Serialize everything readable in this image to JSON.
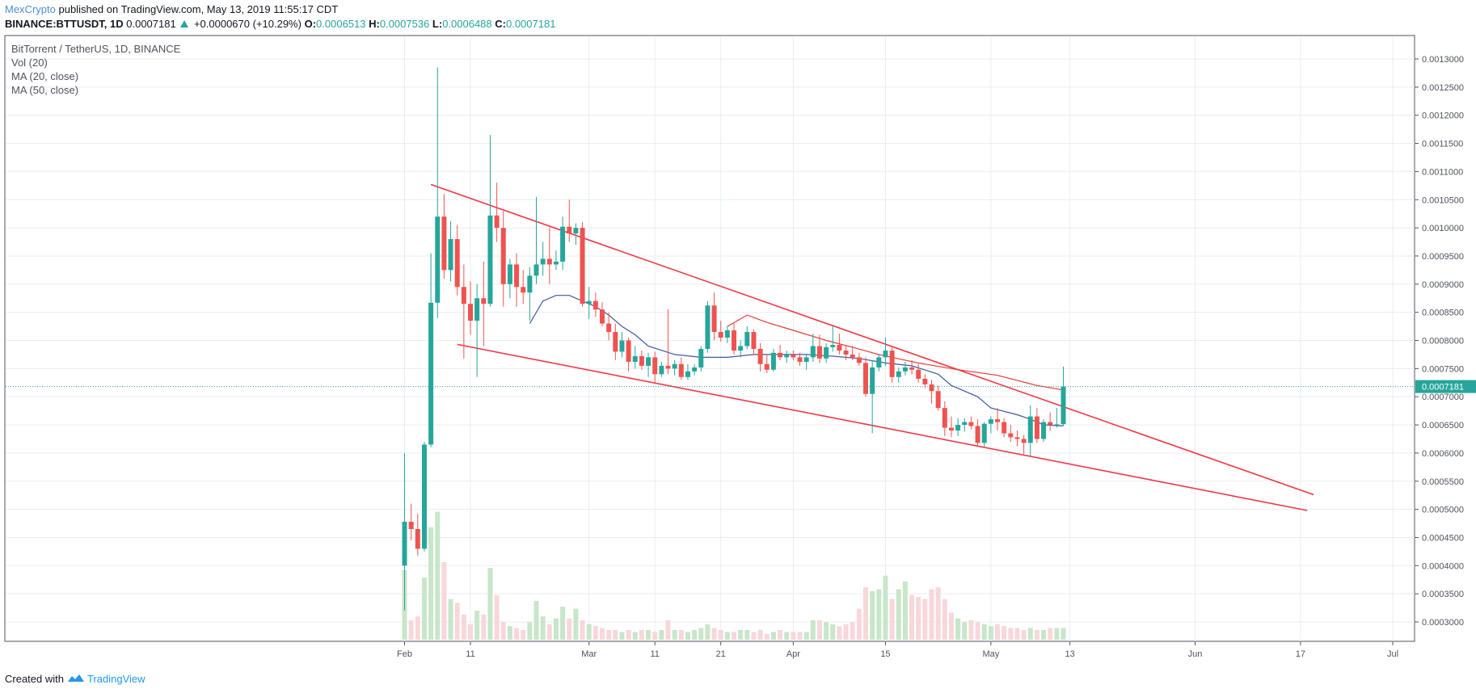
{
  "header": {
    "author": "MexCrypto",
    "published": "published on TradingView.com, May 13, 2019 11:55:17 CDT",
    "symbol": "BINANCE:BTTUSDT, 1D",
    "last": "0.0007181",
    "change": "+0.0000670 (+10.29%)",
    "o_label": "O:",
    "o": "0.0006513",
    "h_label": "H:",
    "h": "0.0007536",
    "l_label": "L:",
    "l": "0.0006488",
    "c_label": "C:",
    "c": "0.0007181"
  },
  "legend": {
    "title": "BitTorrent / TetherUS, 1D, BINANCE",
    "vol": "Vol (20)",
    "ma20": "MA (20, close)",
    "ma50": "MA (50, close)"
  },
  "footer": {
    "created": "Created with",
    "brand": "TradingView"
  },
  "colors": {
    "up": "#26a69a",
    "down": "#ef5350",
    "trend": "#f23645",
    "ma20": "#3d5a9e",
    "ma50": "#e53935",
    "grid": "#e8eef2",
    "vol_up": "#c8e6c9",
    "vol_down": "#f8d7da",
    "price_label": "#26a69a"
  },
  "chart_data": {
    "type": "candlestick",
    "x_ticks": [
      "Feb",
      "11",
      "Mar",
      "11",
      "21",
      "Apr",
      "15",
      "May",
      "13",
      "Jun",
      "17",
      "Jul"
    ],
    "y_ticks": [
      "0.0013000",
      "0.0012500",
      "0.0012000",
      "0.0011500",
      "0.0011000",
      "0.0010500",
      "0.0010000",
      "0.0009500",
      "0.0009000",
      "0.0008500",
      "0.0008000",
      "0.0007500",
      "0.0007000",
      "0.0006500",
      "0.0006000",
      "0.0005500",
      "0.0005000",
      "0.0004500",
      "0.0004000",
      "0.0003500",
      "0.0003000"
    ],
    "last_price": "0.0007181",
    "candles": [
      {
        "o": 0.0004,
        "h": 0.0006,
        "l": 0.00032,
        "c": 0.000478
      },
      {
        "o": 0.000478,
        "h": 0.00051,
        "l": 0.000445,
        "c": 0.000465
      },
      {
        "o": 0.000465,
        "h": 0.000492,
        "l": 0.000418,
        "c": 0.00043
      },
      {
        "o": 0.00043,
        "h": 0.00062,
        "l": 0.000425,
        "c": 0.000615
      },
      {
        "o": 0.000615,
        "h": 0.000955,
        "l": 0.00061,
        "c": 0.000867
      },
      {
        "o": 0.000867,
        "h": 0.001285,
        "l": 0.00084,
        "c": 0.00102
      },
      {
        "o": 0.00102,
        "h": 0.00106,
        "l": 0.00091,
        "c": 0.000925
      },
      {
        "o": 0.000925,
        "h": 0.001012,
        "l": 0.000905,
        "c": 0.00098
      },
      {
        "o": 0.00098,
        "h": 0.001005,
        "l": 0.00088,
        "c": 0.000895
      },
      {
        "o": 0.000895,
        "h": 0.000935,
        "l": 0.000768,
        "c": 0.000865
      },
      {
        "o": 0.000865,
        "h": 0.000905,
        "l": 0.00081,
        "c": 0.000835
      },
      {
        "o": 0.000835,
        "h": 0.0009,
        "l": 0.000735,
        "c": 0.000875
      },
      {
        "o": 0.000875,
        "h": 0.00094,
        "l": 0.00079,
        "c": 0.000865
      },
      {
        "o": 0.000865,
        "h": 0.001165,
        "l": 0.00086,
        "c": 0.001022
      },
      {
        "o": 0.001022,
        "h": 0.00108,
        "l": 0.000975,
        "c": 0.001
      },
      {
        "o": 0.001,
        "h": 0.00103,
        "l": 0.00086,
        "c": 0.0009
      },
      {
        "o": 0.0009,
        "h": 0.000945,
        "l": 0.000875,
        "c": 0.000935
      },
      {
        "o": 0.000935,
        "h": 0.000955,
        "l": 0.00086,
        "c": 0.000895
      },
      {
        "o": 0.000895,
        "h": 0.000925,
        "l": 0.000865,
        "c": 0.000885
      },
      {
        "o": 0.000885,
        "h": 0.00093,
        "l": 0.000835,
        "c": 0.000915
      },
      {
        "o": 0.000915,
        "h": 0.001055,
        "l": 0.0009,
        "c": 0.000935
      },
      {
        "o": 0.000935,
        "h": 0.000975,
        "l": 0.000915,
        "c": 0.000945
      },
      {
        "o": 0.000945,
        "h": 0.001,
        "l": 0.0009,
        "c": 0.000935
      },
      {
        "o": 0.000935,
        "h": 0.00096,
        "l": 0.000925,
        "c": 0.00094
      },
      {
        "o": 0.00094,
        "h": 0.00102,
        "l": 0.000925,
        "c": 0.001002
      },
      {
        "o": 0.001002,
        "h": 0.00105,
        "l": 0.000975,
        "c": 0.00099
      },
      {
        "o": 0.00099,
        "h": 0.001008,
        "l": 0.00097,
        "c": 0.001
      },
      {
        "o": 0.001,
        "h": 0.00101,
        "l": 0.00086,
        "c": 0.000865
      },
      {
        "o": 0.000865,
        "h": 0.000895,
        "l": 0.000838,
        "c": 0.00087
      },
      {
        "o": 0.00087,
        "h": 0.000885,
        "l": 0.000842,
        "c": 0.000855
      },
      {
        "o": 0.000855,
        "h": 0.000868,
        "l": 0.000825,
        "c": 0.00083
      },
      {
        "o": 0.00083,
        "h": 0.00085,
        "l": 0.0008,
        "c": 0.000815
      },
      {
        "o": 0.000815,
        "h": 0.00083,
        "l": 0.000765,
        "c": 0.00078
      },
      {
        "o": 0.00078,
        "h": 0.000815,
        "l": 0.00077,
        "c": 0.0008
      },
      {
        "o": 0.0008,
        "h": 0.000805,
        "l": 0.000745,
        "c": 0.000762
      },
      {
        "o": 0.000762,
        "h": 0.00079,
        "l": 0.00075,
        "c": 0.000772
      },
      {
        "o": 0.000772,
        "h": 0.000782,
        "l": 0.000748,
        "c": 0.000755
      },
      {
        "o": 0.000755,
        "h": 0.000778,
        "l": 0.000735,
        "c": 0.00077
      },
      {
        "o": 0.00077,
        "h": 0.00078,
        "l": 0.000725,
        "c": 0.00074
      },
      {
        "o": 0.00074,
        "h": 0.000762,
        "l": 0.000735,
        "c": 0.000755
      },
      {
        "o": 0.000755,
        "h": 0.000855,
        "l": 0.00074,
        "c": 0.00075
      },
      {
        "o": 0.00075,
        "h": 0.000765,
        "l": 0.000738,
        "c": 0.000758
      },
      {
        "o": 0.000758,
        "h": 0.00077,
        "l": 0.00073,
        "c": 0.000735
      },
      {
        "o": 0.000735,
        "h": 0.000758,
        "l": 0.00073,
        "c": 0.000745
      },
      {
        "o": 0.000745,
        "h": 0.000758,
        "l": 0.000738,
        "c": 0.000752
      },
      {
        "o": 0.000752,
        "h": 0.00079,
        "l": 0.000745,
        "c": 0.000785
      },
      {
        "o": 0.000785,
        "h": 0.00087,
        "l": 0.000778,
        "c": 0.000862
      },
      {
        "o": 0.000862,
        "h": 0.000885,
        "l": 0.0008,
        "c": 0.000815
      },
      {
        "o": 0.000815,
        "h": 0.000835,
        "l": 0.000798,
        "c": 0.000805
      },
      {
        "o": 0.000805,
        "h": 0.000825,
        "l": 0.000795,
        "c": 0.000818
      },
      {
        "o": 0.000818,
        "h": 0.00083,
        "l": 0.000775,
        "c": 0.000782
      },
      {
        "o": 0.000782,
        "h": 0.0008,
        "l": 0.00077,
        "c": 0.00079
      },
      {
        "o": 0.00079,
        "h": 0.000825,
        "l": 0.000785,
        "c": 0.000815
      },
      {
        "o": 0.000815,
        "h": 0.00082,
        "l": 0.000775,
        "c": 0.000785
      },
      {
        "o": 0.000785,
        "h": 0.000795,
        "l": 0.000745,
        "c": 0.000758
      },
      {
        "o": 0.000758,
        "h": 0.000775,
        "l": 0.000742,
        "c": 0.000748
      },
      {
        "o": 0.000748,
        "h": 0.000785,
        "l": 0.000745,
        "c": 0.000778
      },
      {
        "o": 0.000778,
        "h": 0.000792,
        "l": 0.000765,
        "c": 0.00077
      },
      {
        "o": 0.00077,
        "h": 0.000782,
        "l": 0.00076,
        "c": 0.000775
      },
      {
        "o": 0.000775,
        "h": 0.000782,
        "l": 0.000765,
        "c": 0.00077
      },
      {
        "o": 0.00077,
        "h": 0.000778,
        "l": 0.000755,
        "c": 0.000762
      },
      {
        "o": 0.000762,
        "h": 0.000775,
        "l": 0.000748,
        "c": 0.00077
      },
      {
        "o": 0.00077,
        "h": 0.000812,
        "l": 0.000762,
        "c": 0.00079
      },
      {
        "o": 0.00079,
        "h": 0.00081,
        "l": 0.00076,
        "c": 0.000768
      },
      {
        "o": 0.000768,
        "h": 0.000795,
        "l": 0.00076,
        "c": 0.000788
      },
      {
        "o": 0.000788,
        "h": 0.000825,
        "l": 0.00078,
        "c": 0.000792
      },
      {
        "o": 0.000792,
        "h": 0.000812,
        "l": 0.000775,
        "c": 0.000782
      },
      {
        "o": 0.000782,
        "h": 0.000792,
        "l": 0.000765,
        "c": 0.000775
      },
      {
        "o": 0.000775,
        "h": 0.00079,
        "l": 0.000765,
        "c": 0.00077
      },
      {
        "o": 0.00077,
        "h": 0.000778,
        "l": 0.000755,
        "c": 0.00076
      },
      {
        "o": 0.00076,
        "h": 0.00077,
        "l": 0.0007,
        "c": 0.000705
      },
      {
        "o": 0.000705,
        "h": 0.000765,
        "l": 0.000635,
        "c": 0.000752
      },
      {
        "o": 0.000752,
        "h": 0.000775,
        "l": 0.000745,
        "c": 0.00077
      },
      {
        "o": 0.00077,
        "h": 0.000805,
        "l": 0.000755,
        "c": 0.000782
      },
      {
        "o": 0.000782,
        "h": 0.00079,
        "l": 0.000725,
        "c": 0.000735
      },
      {
        "o": 0.000735,
        "h": 0.000752,
        "l": 0.000725,
        "c": 0.000745
      },
      {
        "o": 0.000745,
        "h": 0.000762,
        "l": 0.000738,
        "c": 0.000752
      },
      {
        "o": 0.000752,
        "h": 0.000765,
        "l": 0.00074,
        "c": 0.000748
      },
      {
        "o": 0.000748,
        "h": 0.000758,
        "l": 0.000725,
        "c": 0.000732
      },
      {
        "o": 0.000732,
        "h": 0.00074,
        "l": 0.000715,
        "c": 0.000722
      },
      {
        "o": 0.000722,
        "h": 0.00073,
        "l": 0.000688,
        "c": 0.00071
      },
      {
        "o": 0.00071,
        "h": 0.00072,
        "l": 0.000675,
        "c": 0.00068
      },
      {
        "o": 0.00068,
        "h": 0.000692,
        "l": 0.00063,
        "c": 0.000645
      },
      {
        "o": 0.000645,
        "h": 0.000665,
        "l": 0.000628,
        "c": 0.00064
      },
      {
        "o": 0.00064,
        "h": 0.000662,
        "l": 0.00063,
        "c": 0.00065
      },
      {
        "o": 0.00065,
        "h": 0.000662,
        "l": 0.000638,
        "c": 0.000655
      },
      {
        "o": 0.000655,
        "h": 0.000665,
        "l": 0.000642,
        "c": 0.000648
      },
      {
        "o": 0.000648,
        "h": 0.00066,
        "l": 0.000612,
        "c": 0.000618
      },
      {
        "o": 0.000618,
        "h": 0.000655,
        "l": 0.00061,
        "c": 0.000652
      },
      {
        "o": 0.000652,
        "h": 0.000665,
        "l": 0.000635,
        "c": 0.00066
      },
      {
        "o": 0.00066,
        "h": 0.00068,
        "l": 0.00064,
        "c": 0.000655
      },
      {
        "o": 0.000655,
        "h": 0.000662,
        "l": 0.000628,
        "c": 0.000635
      },
      {
        "o": 0.000635,
        "h": 0.00065,
        "l": 0.00062,
        "c": 0.000628
      },
      {
        "o": 0.000628,
        "h": 0.00064,
        "l": 0.000612,
        "c": 0.000625
      },
      {
        "o": 0.000625,
        "h": 0.000632,
        "l": 0.000598,
        "c": 0.000618
      },
      {
        "o": 0.000618,
        "h": 0.000685,
        "l": 0.000595,
        "c": 0.000665
      },
      {
        "o": 0.000665,
        "h": 0.00068,
        "l": 0.000618,
        "c": 0.000625
      },
      {
        "o": 0.000625,
        "h": 0.00066,
        "l": 0.00062,
        "c": 0.000655
      },
      {
        "o": 0.000655,
        "h": 0.000672,
        "l": 0.00064,
        "c": 0.00065
      },
      {
        "o": 0.00065,
        "h": 0.00068,
        "l": 0.000645,
        "c": 0.000651
      },
      {
        "o": 0.0006513,
        "h": 0.0007536,
        "l": 0.0006488,
        "c": 0.0007181
      }
    ],
    "volume": [
      0.36,
      0.1,
      0.12,
      0.32,
      0.58,
      0.66,
      0.4,
      0.21,
      0.19,
      0.13,
      0.08,
      0.15,
      0.13,
      0.37,
      0.23,
      0.09,
      0.07,
      0.06,
      0.05,
      0.09,
      0.2,
      0.12,
      0.08,
      0.11,
      0.17,
      0.11,
      0.16,
      0.1,
      0.08,
      0.07,
      0.06,
      0.05,
      0.05,
      0.04,
      0.05,
      0.04,
      0.05,
      0.05,
      0.04,
      0.05,
      0.1,
      0.05,
      0.05,
      0.04,
      0.05,
      0.06,
      0.08,
      0.06,
      0.05,
      0.04,
      0.04,
      0.05,
      0.05,
      0.04,
      0.05,
      0.03,
      0.04,
      0.05,
      0.04,
      0.04,
      0.04,
      0.04,
      0.1,
      0.1,
      0.09,
      0.08,
      0.07,
      0.08,
      0.09,
      0.16,
      0.27,
      0.25,
      0.26,
      0.33,
      0.21,
      0.26,
      0.3,
      0.23,
      0.22,
      0.21,
      0.26,
      0.27,
      0.21,
      0.14,
      0.11,
      0.09,
      0.1,
      0.09,
      0.08,
      0.07,
      0.08,
      0.07,
      0.06,
      0.06,
      0.05,
      0.06,
      0.05,
      0.05,
      0.06,
      0.06,
      0.06
    ],
    "ma20": [
      [
        0.00083,
        19
      ],
      [
        0.00087,
        21
      ],
      [
        0.00088,
        23
      ],
      [
        0.00088,
        25
      ],
      [
        0.00087,
        27
      ],
      [
        0.00086,
        29
      ],
      [
        0.000845,
        31
      ],
      [
        0.000825,
        33
      ],
      [
        0.00081,
        35
      ],
      [
        0.00079,
        37
      ],
      [
        0.000775,
        41
      ],
      [
        0.00077,
        45
      ],
      [
        0.00077,
        49
      ],
      [
        0.000775,
        53
      ],
      [
        0.000775,
        57
      ],
      [
        0.000775,
        61
      ],
      [
        0.000772,
        65
      ],
      [
        0.000768,
        69
      ],
      [
        0.00076,
        73
      ],
      [
        0.000755,
        77
      ],
      [
        0.00074,
        81
      ],
      [
        0.00072,
        83
      ],
      [
        0.0007,
        87
      ],
      [
        0.00068,
        89
      ],
      [
        0.000668,
        93
      ],
      [
        0.00066,
        95
      ],
      [
        0.00065,
        97
      ],
      [
        0.000648,
        100
      ]
    ],
    "ma50": [
      [
        0.000825,
        49
      ],
      [
        0.000845,
        52
      ],
      [
        0.000832,
        55
      ],
      [
        0.000818,
        59
      ],
      [
        0.0008,
        64
      ],
      [
        0.000788,
        68
      ],
      [
        0.000775,
        72
      ],
      [
        0.00076,
        78
      ],
      [
        0.000748,
        84
      ],
      [
        0.000738,
        90
      ],
      [
        0.00072,
        96
      ],
      [
        0.000712,
        100
      ]
    ],
    "trendlines": [
      {
        "x1": "2019-02-05",
        "y1": 0.001077,
        "x2": "2019-06-19",
        "y2": 0.000526
      },
      {
        "x1": "2019-02-09",
        "y1": 0.000793,
        "x2": "2019-06-18",
        "y2": 0.000498
      }
    ],
    "price_line_color": "#26a69a"
  }
}
